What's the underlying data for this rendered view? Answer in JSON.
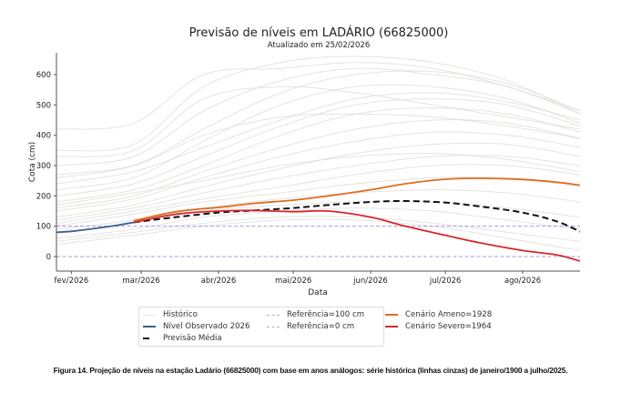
{
  "chart_data": {
    "type": "line",
    "title": "Previsão de níveis em LADÁRIO (66825000)",
    "subtitle": "Atualizado em 25/02/2026",
    "xlabel": "Data",
    "ylabel": "Cota (cm)",
    "xlim": [
      "2026-01-26",
      "2026-08-24"
    ],
    "ylim": [
      -48,
      672
    ],
    "xticks": [
      {
        "date": "2026-02-01",
        "label": "fev/2026"
      },
      {
        "date": "2026-03-01",
        "label": "mar/2026"
      },
      {
        "date": "2026-04-01",
        "label": "abr/2026"
      },
      {
        "date": "2026-05-01",
        "label": "mai/2026"
      },
      {
        "date": "2026-06-01",
        "label": "jun/2026"
      },
      {
        "date": "2026-07-01",
        "label": "jul/2026"
      },
      {
        "date": "2026-08-01",
        "label": "ago/2026"
      }
    ],
    "yticks": [
      0,
      100,
      200,
      300,
      400,
      500,
      600
    ],
    "grid": false,
    "legend_placement": "below",
    "historical": {
      "name": "Histórico",
      "color": "#d9dcd6",
      "x": [
        "2026-01-26",
        "2026-02-26",
        "2026-03-26",
        "2026-04-26",
        "2026-05-26",
        "2026-06-26",
        "2026-07-26",
        "2026-08-24"
      ],
      "series": [
        [
          420,
          440,
          600,
          620,
          640,
          620,
          560,
          480
        ],
        [
          350,
          370,
          560,
          640,
          660,
          640,
          580,
          470
        ],
        [
          300,
          330,
          480,
          580,
          620,
          600,
          560,
          470
        ],
        [
          260,
          300,
          420,
          540,
          600,
          610,
          570,
          480
        ],
        [
          220,
          260,
          380,
          500,
          560,
          560,
          520,
          440
        ],
        [
          200,
          240,
          330,
          430,
          500,
          520,
          500,
          430
        ],
        [
          180,
          220,
          300,
          400,
          470,
          490,
          470,
          410
        ],
        [
          160,
          200,
          280,
          360,
          420,
          450,
          440,
          390
        ],
        [
          150,
          190,
          260,
          330,
          380,
          410,
          400,
          360
        ],
        [
          130,
          170,
          230,
          290,
          340,
          370,
          370,
          330
        ],
        [
          120,
          160,
          210,
          260,
          300,
          330,
          330,
          300
        ],
        [
          110,
          150,
          190,
          230,
          270,
          300,
          300,
          270
        ],
        [
          100,
          140,
          180,
          210,
          240,
          260,
          260,
          230
        ],
        [
          90,
          120,
          160,
          190,
          210,
          220,
          210,
          180
        ],
        [
          80,
          110,
          150,
          170,
          180,
          180,
          160,
          130
        ],
        [
          60,
          90,
          130,
          150,
          160,
          150,
          120,
          90
        ],
        [
          50,
          80,
          110,
          130,
          130,
          110,
          80,
          50
        ],
        [
          40,
          70,
          100,
          120,
          120,
          100,
          60,
          20
        ],
        [
          330,
          350,
          520,
          560,
          540,
          500,
          460,
          420
        ],
        [
          270,
          300,
          400,
          460,
          470,
          460,
          430,
          390
        ],
        [
          240,
          280,
          360,
          450,
          520,
          540,
          510,
          450
        ],
        [
          170,
          210,
          250,
          300,
          330,
          340,
          320,
          280
        ]
      ]
    },
    "series": [
      {
        "name": "Nível Observado 2026",
        "color": "#3a6190",
        "dash": false,
        "x": [
          "2026-01-26",
          "2026-02-01",
          "2026-02-08",
          "2026-02-15",
          "2026-02-20",
          "2026-02-26"
        ],
        "y": [
          80,
          83,
          90,
          98,
          104,
          113
        ]
      },
      {
        "name": "Previsão Média",
        "color": "#111111",
        "dash": true,
        "x": [
          "2026-02-26",
          "2026-03-15",
          "2026-04-01",
          "2026-04-15",
          "2026-05-01",
          "2026-05-15",
          "2026-06-01",
          "2026-06-15",
          "2026-07-01",
          "2026-07-15",
          "2026-08-01",
          "2026-08-15",
          "2026-08-24"
        ],
        "y": [
          113,
          130,
          145,
          152,
          160,
          170,
          180,
          183,
          178,
          165,
          145,
          115,
          82
        ]
      },
      {
        "name": "Cenário Ameno=1928",
        "color": "#e06c1c",
        "dash": false,
        "x": [
          "2026-02-26",
          "2026-03-15",
          "2026-04-01",
          "2026-04-15",
          "2026-05-01",
          "2026-05-15",
          "2026-06-01",
          "2026-06-15",
          "2026-07-01",
          "2026-07-15",
          "2026-08-01",
          "2026-08-15",
          "2026-08-24"
        ],
        "y": [
          118,
          148,
          162,
          175,
          186,
          200,
          220,
          240,
          255,
          258,
          254,
          245,
          235
        ]
      },
      {
        "name": "Cenário Severo=1964",
        "color": "#d7262b",
        "dash": false,
        "x": [
          "2026-02-26",
          "2026-03-15",
          "2026-04-01",
          "2026-04-15",
          "2026-05-01",
          "2026-05-15",
          "2026-06-01",
          "2026-06-15",
          "2026-07-01",
          "2026-07-15",
          "2026-08-01",
          "2026-08-15",
          "2026-08-24"
        ],
        "y": [
          113,
          140,
          150,
          152,
          148,
          150,
          130,
          100,
          70,
          45,
          20,
          5,
          -15
        ]
      }
    ],
    "reference_lines": [
      {
        "name": "Referência=100 cm",
        "y": 100,
        "color": "#9b7fd0"
      },
      {
        "name": "Referência=0 cm",
        "y": 0,
        "color": "#9b7fd0"
      }
    ]
  },
  "caption": "Figura 14. Projeção de níveis na estação Ladário (66825000) com base em anos análogos: série histórica (linhas cinzas) de janeiro/1900 a julho/2025."
}
